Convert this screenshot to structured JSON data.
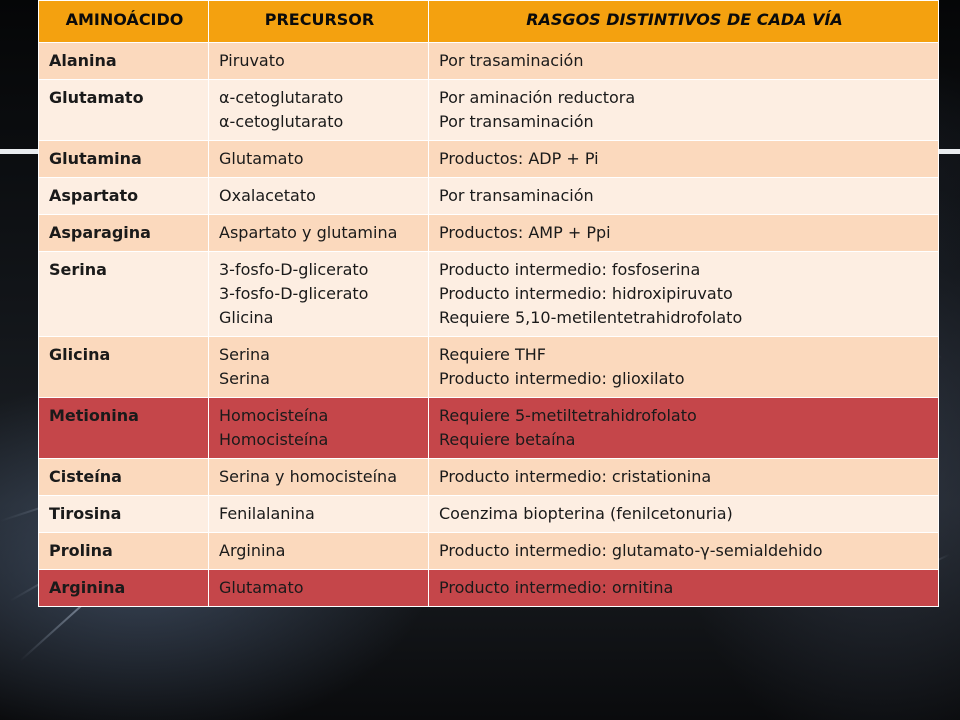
{
  "headers": [
    "AMINOÁCIDO",
    "PRECURSOR",
    "RASGOS DISTINTIVOS DE CADA VÍA"
  ],
  "rows": [
    {
      "name": "Alanina",
      "precursor": [
        "Piruvato"
      ],
      "rasgos": [
        "Por trasaminación"
      ],
      "style": "light"
    },
    {
      "name": "Glutamato",
      "precursor": [
        "α-cetoglutarato",
        "α-cetoglutarato"
      ],
      "rasgos": [
        "Por aminación reductora",
        "Por transaminación"
      ],
      "style": "lighter"
    },
    {
      "name": "Glutamina",
      "precursor": [
        "Glutamato"
      ],
      "rasgos": [
        "Productos: ADP + Pi"
      ],
      "style": "light"
    },
    {
      "name": "Aspartato",
      "precursor": [
        "Oxalacetato"
      ],
      "rasgos": [
        "Por transaminación"
      ],
      "style": "lighter"
    },
    {
      "name": "Asparagina",
      "precursor": [
        "Aspartato y glutamina"
      ],
      "rasgos": [
        "Productos: AMP + Ppi"
      ],
      "style": "light"
    },
    {
      "name": "Serina",
      "precursor": [
        "3-fosfo-D-glicerato",
        "3-fosfo-D-glicerato",
        "Glicina"
      ],
      "rasgos": [
        "Producto intermedio: fosfoserina",
        "Producto intermedio: hidroxipiruvato",
        "Requiere 5,10-metilentetrahidrofolato"
      ],
      "style": "lighter"
    },
    {
      "name": "Glicina",
      "precursor": [
        "Serina",
        "Serina"
      ],
      "rasgos": [
        "Requiere THF",
        "Producto intermedio: glioxilato"
      ],
      "style": "light"
    },
    {
      "name": "Metionina",
      "precursor": [
        "Homocisteína",
        "Homocisteína"
      ],
      "rasgos": [
        "Requiere 5-metiltetrahidrofolato",
        "Requiere betaína"
      ],
      "style": "red"
    },
    {
      "name": "Cisteína",
      "precursor": [
        "Serina y homocisteína"
      ],
      "rasgos": [
        "Producto intermedio: cristationina"
      ],
      "style": "light"
    },
    {
      "name": "Tirosina",
      "precursor": [
        "Fenilalanina"
      ],
      "rasgos": [
        "Coenzima biopterina (fenilcetonuria)"
      ],
      "style": "lighter"
    },
    {
      "name": "Prolina",
      "precursor": [
        "Arginina"
      ],
      "rasgos": [
        "Producto intermedio: glutamato-γ-semialdehido"
      ],
      "style": "light"
    },
    {
      "name": "Arginina",
      "precursor": [
        "Glutamato"
      ],
      "rasgos": [
        "Producto intermedio: ornitina"
      ],
      "style": "red"
    }
  ],
  "colors": {
    "header": "#f4a10f",
    "row_light": "#fbd9bd",
    "row_lighter": "#fdeee2",
    "row_highlight": "#c5464a"
  }
}
